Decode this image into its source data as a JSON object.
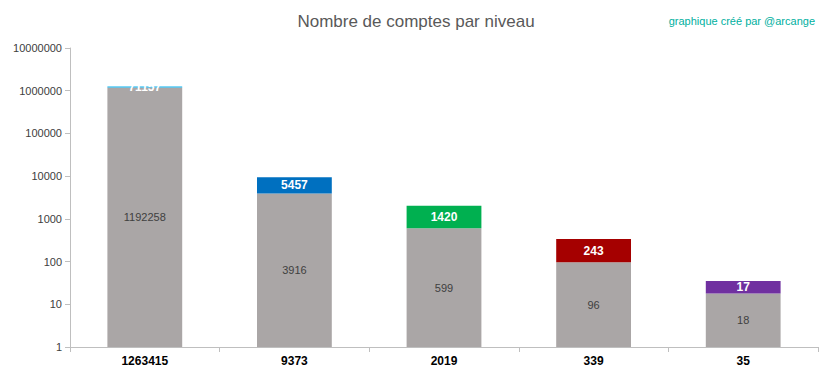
{
  "chart_data": {
    "type": "bar",
    "title": "Nombre de comptes par niveau",
    "subtitle": "graphique créé par @arcange",
    "categories": [
      "1263415",
      "9373",
      "2019",
      "339",
      "35"
    ],
    "series": [
      {
        "color": "#aaa6a6",
        "values": [
          1192258,
          3916,
          599,
          96,
          18
        ]
      },
      {
        "colors": [
          "#00b0f0",
          "#0070c0",
          "#00b050",
          "#a50000",
          "#7030a0"
        ],
        "values": [
          71157,
          5457,
          1420,
          243,
          17
        ]
      }
    ],
    "stacked": true,
    "log": "y",
    "ylim": [
      1,
      10000000
    ],
    "yticks": [
      1,
      10,
      100,
      1000,
      10000,
      100000,
      1000000,
      10000000
    ],
    "grid": false,
    "data_labels": true
  }
}
